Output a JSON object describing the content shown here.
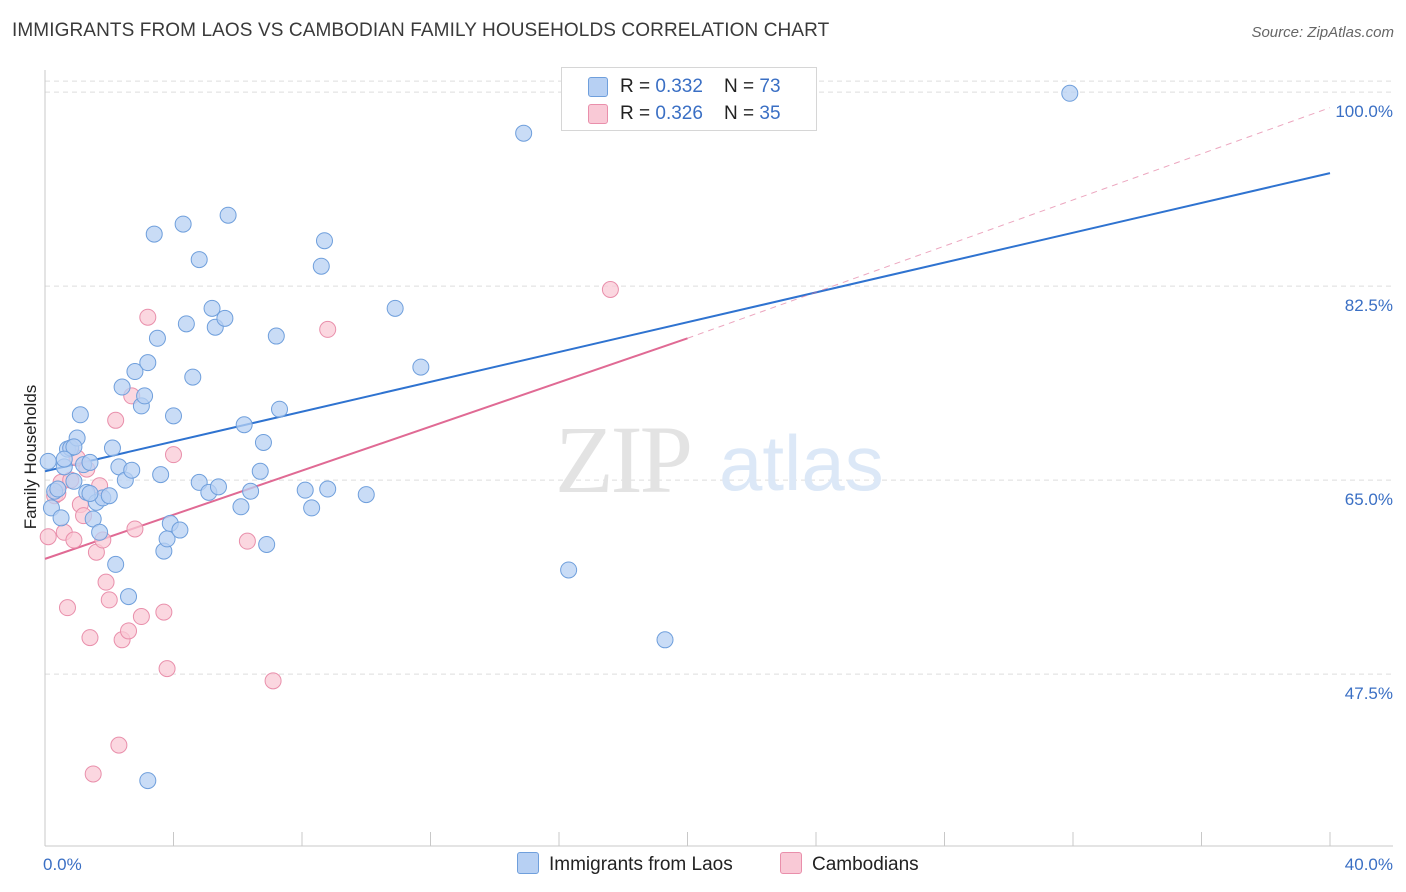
{
  "title": "IMMIGRANTS FROM LAOS VS CAMBODIAN FAMILY HOUSEHOLDS CORRELATION CHART",
  "source": "Source: ZipAtlas.com",
  "watermark": {
    "zip": "ZIP",
    "atlas": "atlas"
  },
  "legend": {
    "rows": [
      {
        "r_label": "R = ",
        "r_value": "0.332",
        "n_label": "N = ",
        "n_value": "73"
      },
      {
        "r_label": "R = ",
        "r_value": "0.326",
        "n_label": "N = ",
        "n_value": "35"
      }
    ]
  },
  "bottom_legend": {
    "series1": "Immigrants from Laos",
    "series2": "Cambodians"
  },
  "colors": {
    "laos_fill": "#b7d0f3",
    "laos_stroke": "#6f9fdc",
    "laos_line": "#2f73d0",
    "camb_fill": "#f9c9d6",
    "camb_stroke": "#e98fab",
    "camb_line": "#e06a94",
    "tick_text": "#3a6fc4",
    "grid": "#dddddd"
  },
  "chart_data": {
    "type": "scatter",
    "xlabel": "",
    "ylabel": "Family Households",
    "xlim": [
      0,
      40
    ],
    "ylim": [
      32,
      102
    ],
    "x_tick_labels": [
      "0.0%",
      "40.0%"
    ],
    "y_ticks": [
      47.5,
      65.0,
      82.5,
      100.0
    ],
    "y_tick_labels": [
      "47.5%",
      "65.0%",
      "82.5%",
      "100.0%"
    ],
    "grid": true,
    "series": [
      {
        "name": "Immigrants from Laos",
        "r": 0.332,
        "n": 73,
        "trend": {
          "x": [
            0,
            40
          ],
          "y": [
            65.8,
            92.7
          ]
        },
        "points": [
          [
            0.1,
            66.7
          ],
          [
            0.2,
            62.5
          ],
          [
            0.3,
            64.0
          ],
          [
            0.4,
            64.2
          ],
          [
            0.5,
            61.6
          ],
          [
            0.6,
            66.2
          ],
          [
            0.7,
            67.8
          ],
          [
            0.8,
            67.9
          ],
          [
            0.9,
            64.9
          ],
          [
            1.0,
            68.8
          ],
          [
            1.1,
            70.9
          ],
          [
            1.2,
            66.4
          ],
          [
            1.3,
            63.9
          ],
          [
            1.4,
            66.6
          ],
          [
            1.5,
            61.5
          ],
          [
            1.6,
            63.0
          ],
          [
            1.7,
            60.3
          ],
          [
            1.8,
            63.4
          ],
          [
            2.0,
            63.6
          ],
          [
            2.1,
            67.9
          ],
          [
            2.2,
            57.4
          ],
          [
            2.3,
            66.2
          ],
          [
            2.4,
            73.4
          ],
          [
            2.5,
            65.0
          ],
          [
            2.6,
            54.5
          ],
          [
            2.7,
            65.9
          ],
          [
            2.8,
            74.8
          ],
          [
            3.0,
            71.7
          ],
          [
            3.1,
            72.6
          ],
          [
            3.2,
            75.6
          ],
          [
            3.4,
            87.2
          ],
          [
            3.5,
            77.8
          ],
          [
            3.6,
            65.5
          ],
          [
            3.7,
            58.6
          ],
          [
            3.8,
            59.7
          ],
          [
            3.9,
            61.1
          ],
          [
            4.0,
            70.8
          ],
          [
            4.2,
            60.5
          ],
          [
            4.3,
            88.1
          ],
          [
            4.4,
            79.1
          ],
          [
            4.6,
            74.3
          ],
          [
            4.8,
            64.8
          ],
          [
            4.8,
            84.9
          ],
          [
            5.1,
            63.9
          ],
          [
            5.2,
            80.5
          ],
          [
            5.3,
            78.8
          ],
          [
            5.4,
            64.4
          ],
          [
            5.6,
            79.6
          ],
          [
            5.7,
            88.9
          ],
          [
            6.1,
            62.6
          ],
          [
            6.2,
            70.0
          ],
          [
            6.4,
            64.0
          ],
          [
            6.7,
            65.8
          ],
          [
            6.8,
            68.4
          ],
          [
            6.9,
            59.2
          ],
          [
            7.2,
            78.0
          ],
          [
            7.3,
            71.4
          ],
          [
            8.1,
            64.1
          ],
          [
            8.3,
            62.5
          ],
          [
            8.6,
            84.3
          ],
          [
            8.7,
            86.6
          ],
          [
            8.8,
            64.2
          ],
          [
            10.0,
            63.7
          ],
          [
            10.9,
            80.5
          ],
          [
            11.7,
            75.2
          ],
          [
            14.9,
            96.3
          ],
          [
            16.3,
            56.9
          ],
          [
            19.3,
            50.6
          ],
          [
            31.9,
            99.9
          ],
          [
            3.2,
            37.9
          ],
          [
            0.9,
            68.0
          ],
          [
            1.4,
            63.8
          ],
          [
            0.6,
            66.9
          ]
        ]
      },
      {
        "name": "Cambodians",
        "r": 0.326,
        "n": 35,
        "trend": {
          "x": [
            0,
            20
          ],
          "y": [
            57.9,
            77.8
          ]
        },
        "trend_extended": {
          "x": [
            20,
            40
          ],
          "y": [
            77.8,
            98.6
          ]
        },
        "points": [
          [
            0.1,
            59.9
          ],
          [
            0.3,
            63.6
          ],
          [
            0.4,
            63.8
          ],
          [
            0.5,
            64.8
          ],
          [
            0.6,
            60.3
          ],
          [
            0.7,
            53.5
          ],
          [
            0.8,
            67.9
          ],
          [
            0.8,
            65.0
          ],
          [
            0.9,
            59.6
          ],
          [
            1.0,
            67.0
          ],
          [
            1.1,
            62.8
          ],
          [
            1.2,
            61.8
          ],
          [
            1.3,
            66.0
          ],
          [
            1.4,
            50.8
          ],
          [
            1.5,
            38.5
          ],
          [
            1.6,
            58.5
          ],
          [
            1.7,
            64.5
          ],
          [
            1.8,
            59.6
          ],
          [
            1.9,
            55.8
          ],
          [
            2.0,
            54.2
          ],
          [
            2.2,
            70.4
          ],
          [
            2.3,
            41.1
          ],
          [
            2.4,
            50.6
          ],
          [
            2.6,
            51.4
          ],
          [
            2.7,
            72.6
          ],
          [
            2.8,
            60.6
          ],
          [
            3.0,
            52.7
          ],
          [
            3.2,
            79.7
          ],
          [
            3.7,
            53.1
          ],
          [
            3.8,
            48.0
          ],
          [
            4.0,
            67.3
          ],
          [
            6.3,
            59.5
          ],
          [
            7.1,
            46.9
          ],
          [
            8.8,
            78.6
          ],
          [
            17.6,
            82.2
          ]
        ]
      }
    ]
  }
}
